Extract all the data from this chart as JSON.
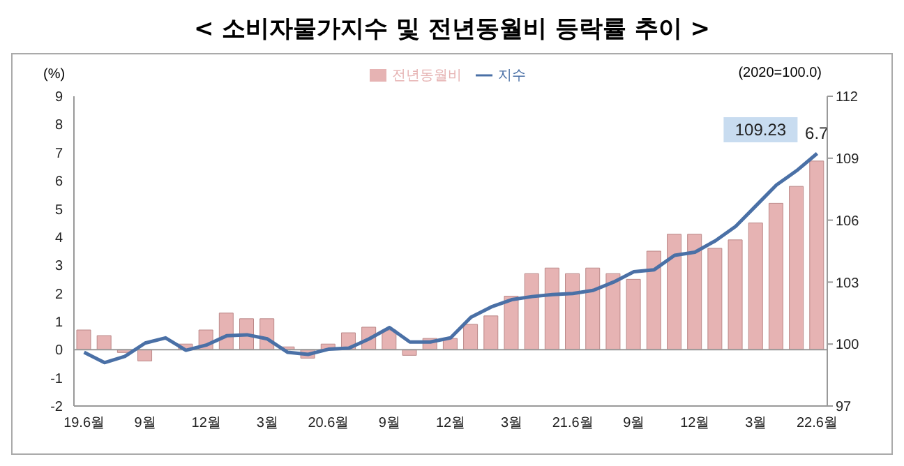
{
  "chart_data": {
    "type": "bar",
    "title": "< 소비자물가지수 및 전년동월비 등락률 추이 >",
    "ylabel": "(%)",
    "annotations": [
      "(2020=100.0)"
    ],
    "categories": [
      "19.6월",
      null,
      null,
      "9월",
      null,
      null,
      "12월",
      null,
      null,
      "3월",
      null,
      null,
      "20.6월",
      null,
      null,
      "9월",
      null,
      null,
      "12월",
      null,
      null,
      "3월",
      null,
      null,
      "21.6월",
      null,
      null,
      "9월",
      null,
      null,
      "12월",
      null,
      null,
      "3월",
      null,
      null,
      "22.6월"
    ],
    "series": [
      {
        "name": "전년동월비",
        "color": "#e6b3b3",
        "values": [
          0.7,
          0.5,
          -0.1,
          -0.4,
          0.0,
          0.2,
          0.7,
          1.3,
          1.1,
          1.1,
          0.1,
          -0.3,
          0.2,
          0.6,
          0.8,
          0.7,
          -0.2,
          0.4,
          0.4,
          0.9,
          1.2,
          1.9,
          2.7,
          2.9,
          2.7,
          2.9,
          2.7,
          2.5,
          3.5,
          4.1,
          4.1,
          3.6,
          3.9,
          4.5,
          5.2,
          5.8,
          6.7
        ],
        "value_labels": [
          null,
          null,
          null,
          null,
          null,
          null,
          null,
          null,
          null,
          null,
          null,
          null,
          null,
          null,
          null,
          null,
          null,
          null,
          null,
          null,
          null,
          null,
          null,
          null,
          null,
          null,
          null,
          null,
          null,
          null,
          null,
          null,
          null,
          null,
          null,
          null,
          "6.7"
        ]
      },
      {
        "name": "지수",
        "type": "line",
        "axis": "y2",
        "color": "#4a70a6",
        "values": [
          99.6,
          99.1,
          99.4,
          100.05,
          100.3,
          99.7,
          99.95,
          100.4,
          100.45,
          100.25,
          99.6,
          99.5,
          99.75,
          99.8,
          100.25,
          100.8,
          100.1,
          100.1,
          100.3,
          101.3,
          101.8,
          102.15,
          102.3,
          102.4,
          102.45,
          102.6,
          103.0,
          103.5,
          103.6,
          104.3,
          104.45,
          105.0,
          105.7,
          106.7,
          107.7,
          108.4,
          109.23
        ],
        "value_labels": [
          null,
          null,
          null,
          null,
          null,
          null,
          null,
          null,
          null,
          null,
          null,
          null,
          null,
          null,
          null,
          null,
          null,
          null,
          null,
          null,
          null,
          null,
          null,
          null,
          null,
          null,
          null,
          null,
          null,
          null,
          null,
          null,
          null,
          null,
          null,
          null,
          "109.23"
        ]
      }
    ],
    "ylim": [
      -2,
      9
    ],
    "yticks": [
      -2,
      -1,
      0,
      1,
      2,
      3,
      4,
      5,
      6,
      7,
      8,
      9
    ],
    "y2lim": [
      97,
      112
    ],
    "y2ticks": [
      97,
      100,
      103,
      106,
      109,
      112
    ],
    "ref_lines": [
      {
        "axis": "y",
        "value": 0,
        "color": "#999999"
      }
    ],
    "grid": false,
    "legend": "top",
    "marker": "none"
  }
}
